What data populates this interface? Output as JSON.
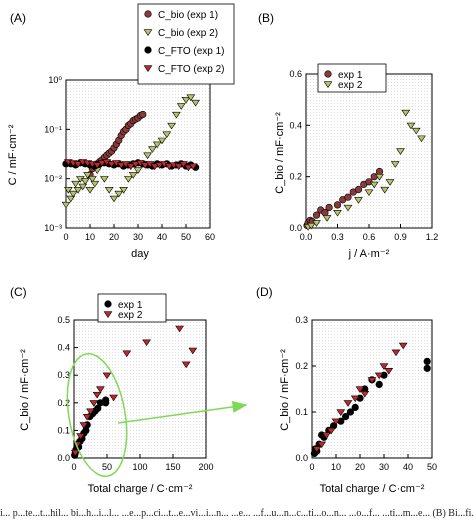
{
  "caption": "i... p...te...t...hil... bi...h...i...l... ...e...p...ci...t...e...vi...i...n... ...e... ...f...u...n...c...ti...o...n... ...o...f... ...ti...m...e... (B) Bi...fi...l...m... ...c...a...p...a...c...it...n...c...e... ...v...s... ...c...u...r...r...e...n...t... ...d...e...n...s...it...y",
  "colors": {
    "bio": "#8a3a3a",
    "bio2": "#b9c46a",
    "fto": "#000000",
    "fto2": "#c0282d",
    "ellipse": "#7ed957",
    "arrow": "#7ed957"
  },
  "chart_data": [
    {
      "panel": "(A)",
      "type": "scatter",
      "xlabel": "day",
      "ylabel": "C / mF·cm⁻²",
      "yscale": "log",
      "xlim": [
        0,
        60
      ],
      "ylim": [
        0.001,
        1
      ],
      "xticks": [
        "0",
        "10",
        "20",
        "30",
        "40",
        "50",
        "60"
      ],
      "yticks": [
        "10⁻³",
        "10⁻²",
        "10⁻¹",
        "10⁰"
      ],
      "legend": [
        "C_bio (exp 1)",
        "C_bio (exp 2)",
        "C_FTO (exp 1)",
        "C_FTO (exp 2)"
      ],
      "series": [
        {
          "name": "C_bio (exp 1)",
          "marker": "circle",
          "color": "#8a3a3a",
          "x": [
            10,
            11,
            12,
            13,
            14,
            15,
            16,
            17,
            18,
            19,
            20,
            21,
            22,
            23,
            24,
            25,
            26,
            27,
            28,
            29,
            30,
            31,
            32
          ],
          "y": [
            0.012,
            0.016,
            0.018,
            0.02,
            0.022,
            0.024,
            0.027,
            0.03,
            0.033,
            0.036,
            0.042,
            0.05,
            0.06,
            0.075,
            0.09,
            0.1,
            0.12,
            0.13,
            0.15,
            0.16,
            0.17,
            0.19,
            0.2
          ]
        },
        {
          "name": "C_bio (exp 2)",
          "marker": "triangle-down",
          "color": "#b9c46a",
          "x": [
            0,
            1,
            2,
            3,
            4,
            5,
            6,
            7,
            8,
            9,
            10,
            11,
            12,
            13,
            14,
            16,
            18,
            20,
            22,
            24,
            26,
            28,
            30,
            32,
            34,
            36,
            38,
            40,
            42,
            44,
            46,
            48,
            50,
            52,
            54
          ],
          "y": [
            0.003,
            0.006,
            0.004,
            0.005,
            0.008,
            0.006,
            0.01,
            0.007,
            0.009,
            0.012,
            0.006,
            0.01,
            0.008,
            0.015,
            0.02,
            0.01,
            0.006,
            0.004,
            0.005,
            0.006,
            0.01,
            0.012,
            0.015,
            0.02,
            0.03,
            0.04,
            0.05,
            0.06,
            0.08,
            0.12,
            0.2,
            0.3,
            0.4,
            0.45,
            0.35
          ]
        },
        {
          "name": "C_FTO (exp 1)",
          "marker": "circle",
          "color": "#000000",
          "x": [
            0,
            2,
            4,
            6,
            8,
            10,
            12,
            14,
            16,
            18,
            20,
            22,
            24,
            26,
            28,
            30,
            32,
            34,
            36,
            38,
            40,
            42,
            44,
            46,
            48,
            50,
            52,
            54
          ],
          "y": [
            0.02,
            0.02,
            0.019,
            0.021,
            0.02,
            0.019,
            0.018,
            0.02,
            0.021,
            0.02,
            0.019,
            0.02,
            0.018,
            0.019,
            0.02,
            0.021,
            0.02,
            0.019,
            0.018,
            0.02,
            0.019,
            0.02,
            0.018,
            0.019,
            0.02,
            0.018,
            0.019,
            0.017
          ]
        },
        {
          "name": "C_FTO (exp 2)",
          "marker": "triangle-down",
          "color": "#c0282d",
          "x": [
            1,
            3,
            5,
            7,
            9,
            11,
            13,
            15,
            17,
            19,
            21,
            23,
            25,
            27,
            29,
            31,
            33,
            35,
            37,
            39,
            41,
            43,
            45,
            47,
            49,
            51,
            53
          ],
          "y": [
            0.022,
            0.021,
            0.02,
            0.022,
            0.021,
            0.02,
            0.019,
            0.021,
            0.022,
            0.02,
            0.021,
            0.019,
            0.02,
            0.018,
            0.02,
            0.021,
            0.019,
            0.02,
            0.018,
            0.019,
            0.02,
            0.018,
            0.019,
            0.018,
            0.02,
            0.017,
            0.018
          ]
        }
      ]
    },
    {
      "panel": "(B)",
      "type": "scatter",
      "xlabel": "j / A·m⁻²",
      "ylabel": "C_bio / mF·cm⁻²",
      "xlim": [
        0,
        1.2
      ],
      "ylim": [
        0,
        0.6
      ],
      "xticks": [
        "0.0",
        "0.3",
        "0.6",
        "0.9",
        "1.2"
      ],
      "yticks": [
        "0.0",
        "0.2",
        "0.4",
        "0.6"
      ],
      "legend": [
        "exp 1",
        "exp 2"
      ],
      "series": [
        {
          "name": "exp 1",
          "marker": "circle",
          "color": "#8a3a3a",
          "x": [
            0.01,
            0.02,
            0.04,
            0.06,
            0.1,
            0.14,
            0.18,
            0.22,
            0.3,
            0.35,
            0.4,
            0.45,
            0.5,
            0.55,
            0.6,
            0.65,
            0.7
          ],
          "y": [
            0.01,
            0.02,
            0.03,
            0.025,
            0.05,
            0.07,
            0.06,
            0.08,
            0.09,
            0.11,
            0.12,
            0.14,
            0.15,
            0.17,
            0.18,
            0.2,
            0.22
          ]
        },
        {
          "name": "exp 2",
          "marker": "triangle-down",
          "color": "#b9c46a",
          "x": [
            0.02,
            0.05,
            0.1,
            0.2,
            0.3,
            0.4,
            0.5,
            0.6,
            0.65,
            0.7,
            0.75,
            0.8,
            0.85,
            0.9,
            0.95,
            1.0,
            1.05,
            1.1
          ],
          "y": [
            0.005,
            0.01,
            0.02,
            0.04,
            0.06,
            0.08,
            0.11,
            0.14,
            0.17,
            0.2,
            0.15,
            0.18,
            0.25,
            0.3,
            0.45,
            0.4,
            0.38,
            0.35
          ]
        }
      ]
    },
    {
      "panel": "(C)",
      "type": "scatter",
      "xlabel": "Total charge / C·cm⁻²",
      "ylabel": "C_bio / mF·cm⁻²",
      "xlim": [
        0,
        200
      ],
      "ylim": [
        0,
        0.5
      ],
      "xticks": [
        "0",
        "50",
        "100",
        "150",
        "200"
      ],
      "yticks": [
        "0.0",
        "0.1",
        "0.2",
        "0.3",
        "0.4",
        "0.5"
      ],
      "legend": [
        "exp 1",
        "exp 2"
      ],
      "series": [
        {
          "name": "exp 1",
          "marker": "circle",
          "color": "#000000",
          "x": [
            1,
            2,
            3,
            5,
            7,
            9,
            12,
            15,
            18,
            20,
            24,
            28,
            32,
            36,
            40,
            48,
            48
          ],
          "y": [
            0.01,
            0.02,
            0.03,
            0.05,
            0.04,
            0.06,
            0.07,
            0.09,
            0.1,
            0.12,
            0.15,
            0.16,
            0.17,
            0.18,
            0.2,
            0.21,
            0.2
          ]
        },
        {
          "name": "exp 2",
          "marker": "triangle-down",
          "color": "#c0282d",
          "x": [
            2,
            5,
            10,
            15,
            20,
            25,
            30,
            35,
            40,
            50,
            60,
            80,
            110,
            160,
            170,
            180
          ],
          "y": [
            0.02,
            0.05,
            0.08,
            0.12,
            0.15,
            0.17,
            0.2,
            0.23,
            0.25,
            0.3,
            0.22,
            0.38,
            0.42,
            0.47,
            0.34,
            0.39
          ]
        }
      ]
    },
    {
      "panel": "(D)",
      "type": "scatter",
      "xlabel": "Total charge / C·cm⁻²",
      "ylabel": "C_bio / mF·cm⁻²",
      "xlim": [
        0,
        50
      ],
      "ylim": [
        0,
        0.3
      ],
      "xticks": [
        "0",
        "10",
        "20",
        "30",
        "40",
        "50"
      ],
      "yticks": [
        "0.0",
        "0.1",
        "0.2",
        "0.3"
      ],
      "series": [
        {
          "name": "exp 1",
          "marker": "circle",
          "color": "#000000",
          "x": [
            1,
            1.5,
            2,
            3,
            4,
            5,
            7,
            9,
            12,
            14,
            16,
            18,
            20,
            22,
            25,
            28,
            30,
            48,
            48
          ],
          "y": [
            0.01,
            0.02,
            0.015,
            0.03,
            0.05,
            0.045,
            0.06,
            0.07,
            0.08,
            0.09,
            0.1,
            0.11,
            0.13,
            0.15,
            0.17,
            0.16,
            0.18,
            0.21,
            0.195
          ]
        },
        {
          "name": "exp 2",
          "marker": "triangle-down",
          "color": "#c0282d",
          "x": [
            2,
            4,
            6,
            8,
            10,
            12,
            15,
            18,
            20,
            22,
            25,
            28,
            30,
            32,
            35,
            38
          ],
          "y": [
            0.02,
            0.03,
            0.05,
            0.06,
            0.08,
            0.1,
            0.12,
            0.13,
            0.15,
            0.14,
            0.17,
            0.18,
            0.2,
            0.19,
            0.23,
            0.245
          ]
        }
      ]
    }
  ]
}
